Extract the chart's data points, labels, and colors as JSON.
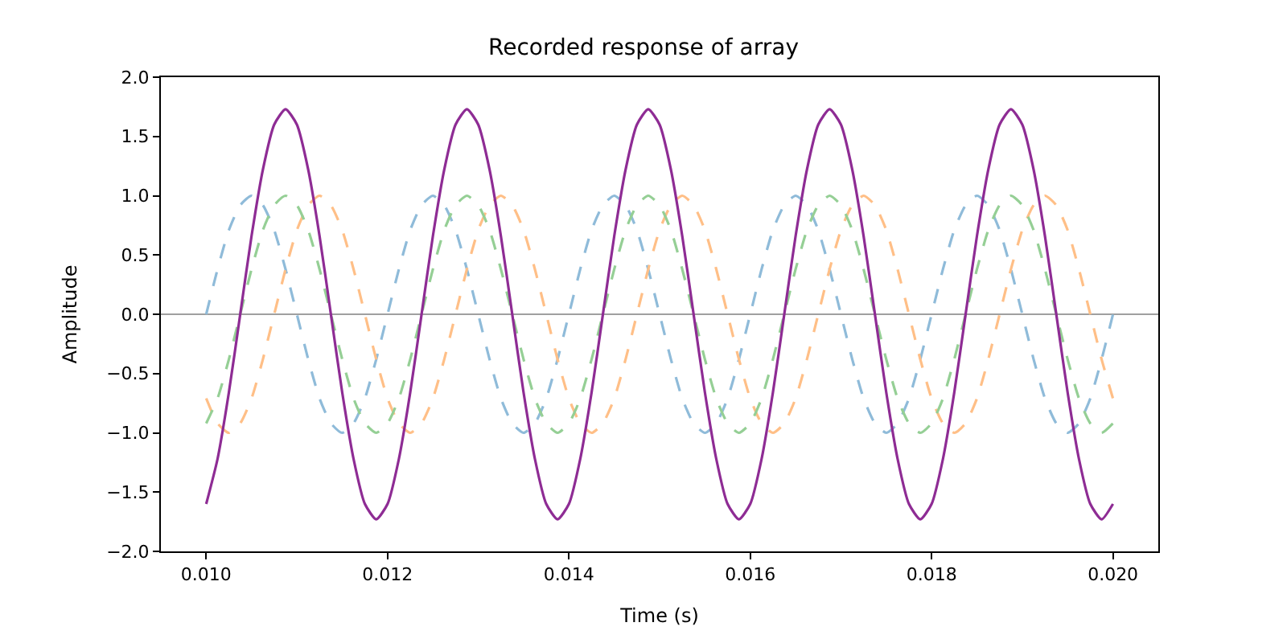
{
  "chart_data": {
    "type": "line",
    "title": "Recorded response of array",
    "xlabel": "Time (s)",
    "ylabel": "Amplitude",
    "x": [
      0.01,
      0.010125,
      0.01025,
      0.010375,
      0.0105,
      0.010625,
      0.01075,
      0.010875,
      0.011,
      0.011125,
      0.01125,
      0.011375,
      0.0115,
      0.011625,
      0.01175,
      0.011875,
      0.012,
      0.012125,
      0.01225,
      0.012375,
      0.0125,
      0.012625,
      0.01275,
      0.012875,
      0.013,
      0.013125,
      0.01325,
      0.013375,
      0.0135,
      0.013625,
      0.01375,
      0.013875,
      0.014,
      0.014125,
      0.01425,
      0.014375,
      0.0145,
      0.014625,
      0.01475,
      0.014875,
      0.015,
      0.015125,
      0.01525,
      0.015375,
      0.0155,
      0.015625,
      0.01575,
      0.015875,
      0.016,
      0.016125,
      0.01625,
      0.016375,
      0.0165,
      0.016625,
      0.01675,
      0.016875,
      0.017,
      0.017125,
      0.01725,
      0.017375,
      0.0175,
      0.017625,
      0.01775,
      0.017875,
      0.018,
      0.018125,
      0.01825,
      0.018375,
      0.0185,
      0.018625,
      0.01875,
      0.018875,
      0.019,
      0.019125,
      0.01925,
      0.019375,
      0.0195,
      0.019625,
      0.01975,
      0.019875,
      0.02
    ],
    "series": [
      {
        "color": "#8fbbd9",
        "line_style": "dashed",
        "values": [
          0,
          0.38,
          0.71,
          0.92,
          1,
          0.92,
          0.71,
          0.38,
          0,
          -0.38,
          -0.71,
          -0.92,
          -1,
          -0.92,
          -0.71,
          -0.38,
          0,
          0.38,
          0.71,
          0.92,
          1,
          0.92,
          0.71,
          0.38,
          0,
          -0.38,
          -0.71,
          -0.92,
          -1,
          -0.92,
          -0.71,
          -0.38,
          0,
          0.38,
          0.71,
          0.92,
          1,
          0.92,
          0.71,
          0.38,
          0,
          -0.38,
          -0.71,
          -0.92,
          -1,
          -0.92,
          -0.71,
          -0.38,
          0,
          0.38,
          0.71,
          0.92,
          1,
          0.92,
          0.71,
          0.38,
          0,
          -0.38,
          -0.71,
          -0.92,
          -1,
          -0.92,
          -0.71,
          -0.38,
          0,
          0.38,
          0.71,
          0.92,
          1,
          0.92,
          0.71,
          0.38,
          0,
          -0.38,
          -0.71,
          -0.92,
          -1,
          -0.92,
          -0.71,
          -0.38,
          0
        ]
      },
      {
        "color": "#ffbf87",
        "line_style": "dashed",
        "values": [
          -0.71,
          -0.92,
          -1,
          -0.92,
          -0.71,
          -0.38,
          0,
          0.38,
          0.71,
          0.92,
          1,
          0.92,
          0.71,
          0.38,
          0,
          -0.38,
          -0.71,
          -0.92,
          -1,
          -0.92,
          -0.71,
          -0.38,
          0,
          0.38,
          0.71,
          0.92,
          1,
          0.92,
          0.71,
          0.38,
          0,
          -0.38,
          -0.71,
          -0.92,
          -1,
          -0.92,
          -0.71,
          -0.38,
          0,
          0.38,
          0.71,
          0.92,
          1,
          0.92,
          0.71,
          0.38,
          0,
          -0.38,
          -0.71,
          -0.92,
          -1,
          -0.92,
          -0.71,
          -0.38,
          0,
          0.38,
          0.71,
          0.92,
          1,
          0.92,
          0.71,
          0.38,
          0,
          -0.38,
          -0.71,
          -0.92,
          -1,
          -0.92,
          -0.71,
          -0.38,
          0,
          0.38,
          0.71,
          0.92,
          1,
          0.92,
          0.71,
          0.38,
          0,
          -0.38,
          -0.71
        ]
      },
      {
        "color": "#95cf95",
        "line_style": "dashed",
        "values": [
          -0.92,
          -0.71,
          -0.38,
          0,
          0.38,
          0.71,
          0.92,
          1,
          0.92,
          0.71,
          0.38,
          0,
          -0.38,
          -0.71,
          -0.92,
          -1,
          -0.92,
          -0.71,
          -0.38,
          0,
          0.38,
          0.71,
          0.92,
          1,
          0.92,
          0.71,
          0.38,
          0,
          -0.38,
          -0.71,
          -0.92,
          -1,
          -0.92,
          -0.71,
          -0.38,
          0,
          0.38,
          0.71,
          0.92,
          1,
          0.92,
          0.71,
          0.38,
          0,
          -0.38,
          -0.71,
          -0.92,
          -1,
          -0.92,
          -0.71,
          -0.38,
          0,
          0.38,
          0.71,
          0.92,
          1,
          0.92,
          0.71,
          0.38,
          0,
          -0.38,
          -0.71,
          -0.92,
          -1,
          -0.92,
          -0.71,
          -0.38,
          0,
          0.38,
          0.71,
          0.92,
          1,
          0.92,
          0.71,
          0.38,
          0,
          -0.38,
          -0.71,
          -0.92,
          -1,
          -0.92
        ]
      },
      {
        "color": "#8e2c94",
        "line_style": "solid",
        "values": [
          -1.6,
          -1.22,
          -0.66,
          0,
          0.66,
          1.22,
          1.6,
          1.73,
          1.6,
          1.22,
          0.66,
          0,
          -0.66,
          -1.22,
          -1.6,
          -1.73,
          -1.6,
          -1.22,
          -0.66,
          0,
          0.66,
          1.22,
          1.6,
          1.73,
          1.6,
          1.22,
          0.66,
          0,
          -0.66,
          -1.22,
          -1.6,
          -1.73,
          -1.6,
          -1.22,
          -0.66,
          0,
          0.66,
          1.22,
          1.6,
          1.73,
          1.6,
          1.22,
          0.66,
          0,
          -0.66,
          -1.22,
          -1.6,
          -1.73,
          -1.6,
          -1.22,
          -0.66,
          0,
          0.66,
          1.22,
          1.6,
          1.73,
          1.6,
          1.22,
          0.66,
          0,
          -0.66,
          -1.22,
          -1.6,
          -1.73,
          -1.6,
          -1.22,
          -0.66,
          0,
          0.66,
          1.22,
          1.6,
          1.73,
          1.6,
          1.22,
          0.66,
          0,
          -0.66,
          -1.22,
          -1.6,
          -1.73,
          -1.6
        ]
      }
    ],
    "ref_lines": [
      {
        "axis": "y",
        "value": 0,
        "color": "#808080"
      }
    ],
    "xlim": [
      0.0095,
      0.0205
    ],
    "xticks": [
      {
        "value": 0.01,
        "label": "0.010"
      },
      {
        "value": 0.012,
        "label": "0.012"
      },
      {
        "value": 0.014,
        "label": "0.014"
      },
      {
        "value": 0.016,
        "label": "0.016"
      },
      {
        "value": 0.018,
        "label": "0.018"
      },
      {
        "value": 0.02,
        "label": "0.020"
      }
    ],
    "ylim": [
      -2,
      2
    ],
    "yticks": [
      {
        "value": -2,
        "label": "−2.0"
      },
      {
        "value": -1.5,
        "label": "−1.5"
      },
      {
        "value": -1,
        "label": "−1.0"
      },
      {
        "value": -0.5,
        "label": "−0.5"
      },
      {
        "value": 0,
        "label": "0.0"
      },
      {
        "value": 0.5,
        "label": "0.5"
      },
      {
        "value": 1,
        "label": "1.0"
      },
      {
        "value": 1.5,
        "label": "1.5"
      },
      {
        "value": 2,
        "label": "2.0"
      }
    ],
    "grid": false,
    "marker": "none"
  }
}
